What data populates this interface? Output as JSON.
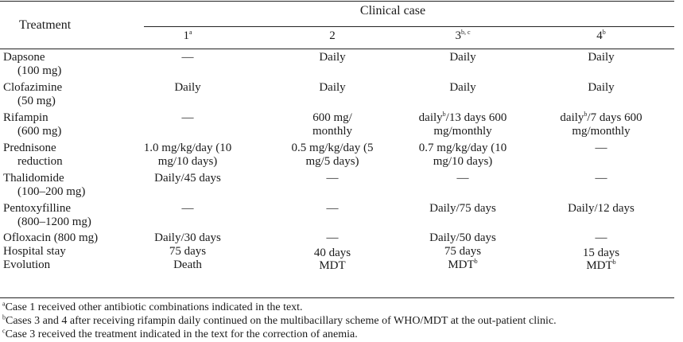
{
  "table": {
    "header_group": "Clinical case",
    "header_treatment": "Treatment",
    "columns": [
      {
        "label": "1",
        "sup": "a"
      },
      {
        "label": "2",
        "sup": ""
      },
      {
        "label": "3",
        "sup": "b, c"
      },
      {
        "label": "4",
        "sup": "b"
      }
    ],
    "rows": [
      {
        "name": "Dapsone",
        "sub": "(100 mg)",
        "cells": [
          "—",
          "Daily",
          "Daily",
          "Daily"
        ]
      },
      {
        "name": "Clofazimine",
        "sub": "(50 mg)",
        "cells": [
          "Daily",
          "Daily",
          "Daily",
          "Daily"
        ]
      },
      {
        "name": "Rifampin",
        "sub": "(600 mg)",
        "cells": [
          "—",
          "600 mg/ monthly",
          "daily/13 days 600 mg/monthly",
          "daily/7 days 600 mg/monthly"
        ]
      },
      {
        "name": "Prednisone",
        "sub": "reduction",
        "cells": [
          "1.0 mg/kg/day (10 mg/10 days)",
          "0.5 mg/kg/day (5 mg/5 days)",
          "0.7 mg/kg/day (10 mg/10 days)",
          "—"
        ]
      },
      {
        "name": "Thalidomide",
        "sub": "(100–200 mg)",
        "cells": [
          "Daily/45 days",
          "—",
          "—",
          "—"
        ]
      },
      {
        "name": "Pentoxyfilline",
        "sub": "(800–1200 mg)",
        "cells": [
          "—",
          "—",
          "Daily/75 days",
          "Daily/12 days"
        ]
      },
      {
        "name": "Ofloxacin (800 mg)",
        "sub": "",
        "cells": [
          "Daily/30 days",
          "—",
          "Daily/50 days",
          "—"
        ]
      },
      {
        "name": "Hospital stay",
        "sub": "",
        "cells": [
          "75 days",
          "40 days",
          "75 days",
          "15 days"
        ]
      },
      {
        "name": "Evolution",
        "sub": "",
        "cells": [
          "Death",
          "MDT",
          "MDT",
          "MDT"
        ]
      }
    ]
  },
  "footnotes": [
    {
      "mark": "a",
      "text": "Case 1 received other antibiotic combinations indicated in the text."
    },
    {
      "mark": "b",
      "text": "Cases 3 and 4 after receiving rifampin daily continued on the multibacillary scheme of WHO/MDT at the out-patient clinic."
    },
    {
      "mark": "c",
      "text": "Case 3 received the treatment indicated in the text for the correction of anemia."
    }
  ]
}
